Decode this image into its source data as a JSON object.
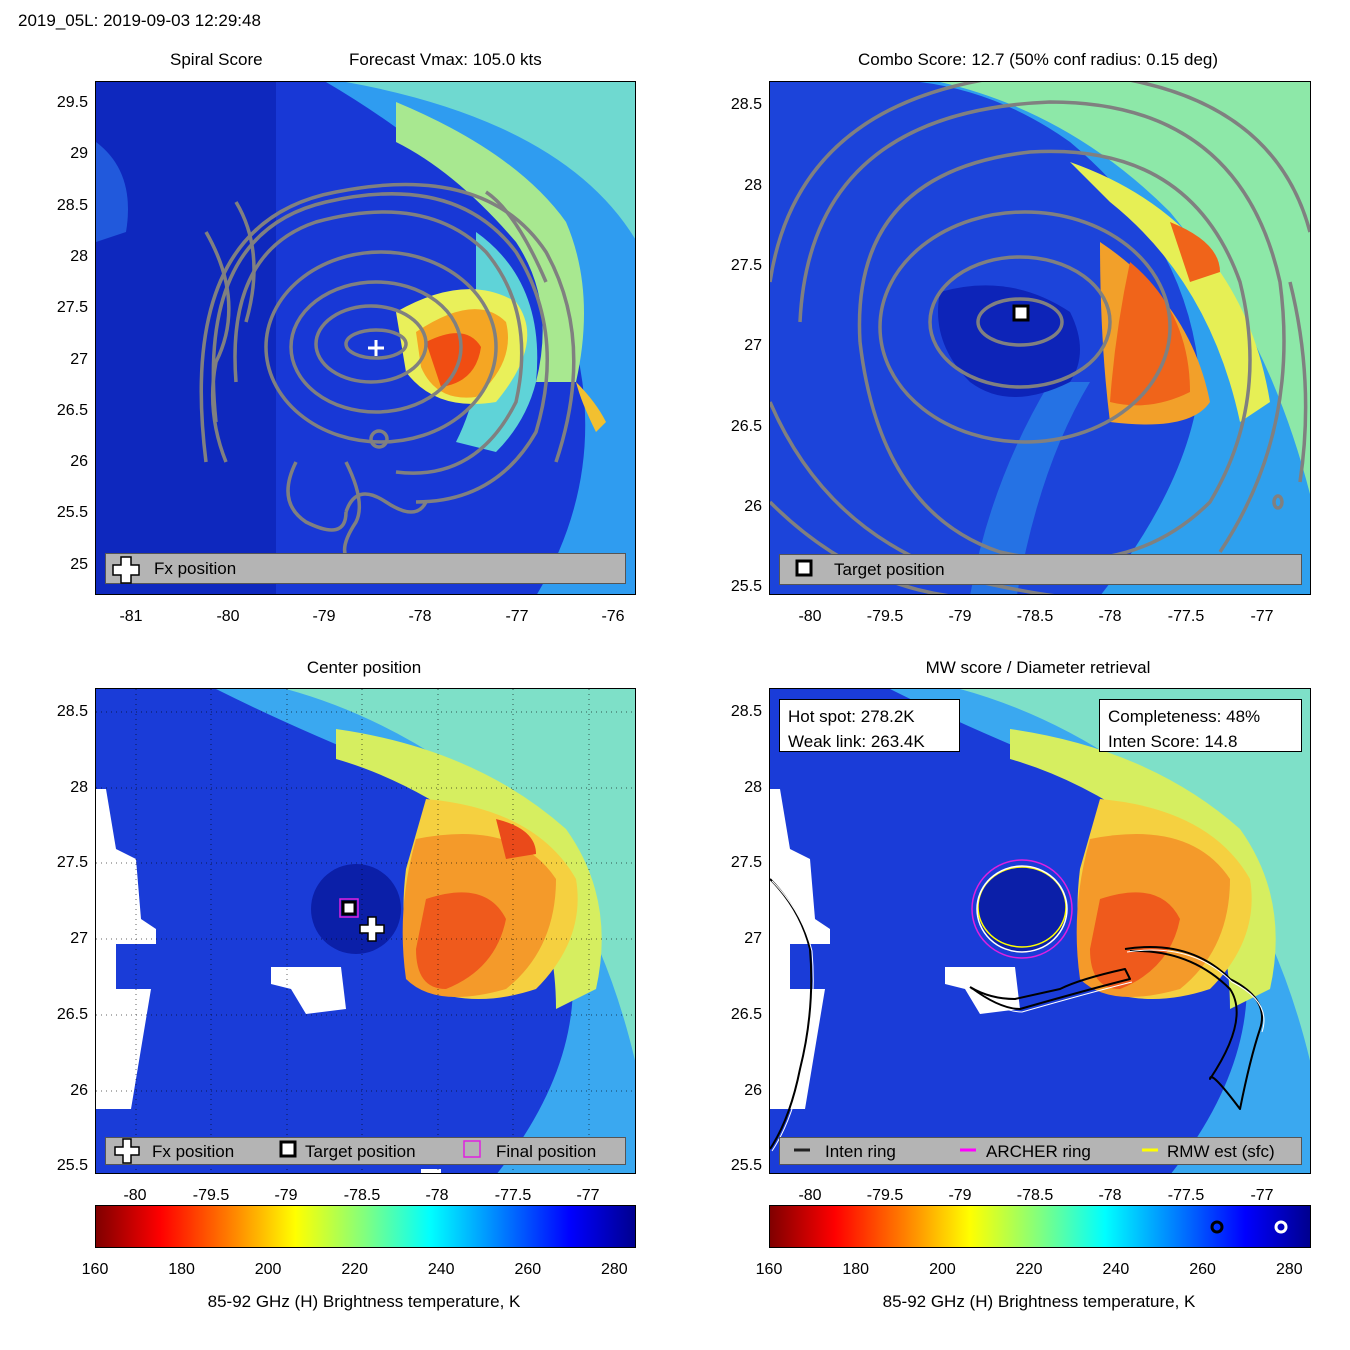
{
  "header": "2019_05L: 2019-09-03 12:29:48",
  "panel1": {
    "title_left": "Spiral Score",
    "title_right": "Forecast Vmax: 105.0 kts",
    "yticks": [
      "29.5",
      "29",
      "28.5",
      "28",
      "27.5",
      "27",
      "26.5",
      "26",
      "25.5",
      "25"
    ],
    "xticks": [
      "-81",
      "-80",
      "-79",
      "-78",
      "-77",
      "-76"
    ],
    "legend": "Fx position"
  },
  "panel2": {
    "title": "Combo Score: 12.7  (50% conf radius: 0.15 deg)",
    "yticks": [
      "28.5",
      "28",
      "27.5",
      "27",
      "26.5",
      "26",
      "25.5"
    ],
    "xticks": [
      "-80",
      "-79.5",
      "-79",
      "-78.5",
      "-78",
      "-77.5",
      "-77"
    ],
    "legend": "Target position"
  },
  "panel3": {
    "title": "Center position",
    "yticks": [
      "28.5",
      "28",
      "27.5",
      "27",
      "26.5",
      "26",
      "25.5"
    ],
    "xticks": [
      "-80",
      "-79.5",
      "-79",
      "-78.5",
      "-78",
      "-77.5",
      "-77"
    ],
    "legend": [
      "Fx position",
      "Target position",
      "Final position"
    ]
  },
  "panel4": {
    "title": "MW score / Diameter retrieval",
    "yticks": [
      "28.5",
      "28",
      "27.5",
      "27",
      "26.5",
      "26",
      "25.5"
    ],
    "xticks": [
      "-80",
      "-79.5",
      "-79",
      "-78.5",
      "-78",
      "-77.5",
      "-77"
    ],
    "hot_spot": "Hot spot: 278.2K",
    "weak_link": "Weak link: 263.4K",
    "completeness": "Completeness: 48%",
    "inten_score": "Inten Score: 14.8",
    "legend": [
      "Inten ring",
      "ARCHER ring",
      "RMW est (sfc)"
    ]
  },
  "colorbar": {
    "ticks": [
      "160",
      "180",
      "200",
      "220",
      "240",
      "260",
      "280"
    ],
    "label": "85-92 GHz (H) Brightness temperature, K",
    "range": [
      160,
      285
    ]
  },
  "colors": {
    "legend_bg": "#b4b4b4",
    "contour": "#808080",
    "archer": "#ff00ff",
    "rmw": "#ffff00"
  },
  "chart_data": [
    {
      "type": "heatmap",
      "title": "Spiral Score",
      "subtitle": "Forecast Vmax: 105.0 kts",
      "xlim": [
        -81.3,
        -75.7
      ],
      "ylim": [
        24.7,
        29.7
      ],
      "fx_position": {
        "lon": -78.5,
        "lat": 27.05
      },
      "legend": [
        "Fx position"
      ]
    },
    {
      "type": "heatmap",
      "title": "Combo Score: 12.7  (50% conf radius: 0.15 deg)",
      "xlim": [
        -80.25,
        -76.7
      ],
      "ylim": [
        25.45,
        28.65
      ],
      "target_position": {
        "lon": -78.6,
        "lat": 27.2
      },
      "legend": [
        "Target position"
      ]
    },
    {
      "type": "heatmap",
      "title": "Center position",
      "xlim": [
        -80.25,
        -76.7
      ],
      "ylim": [
        25.45,
        28.65
      ],
      "fx_position": {
        "lon": -78.5,
        "lat": 27.05
      },
      "target_position": {
        "lon": -78.6,
        "lat": 27.2
      },
      "final_position": {
        "lon": -78.6,
        "lat": 27.2
      },
      "legend": [
        "Fx position",
        "Target position",
        "Final position"
      ]
    },
    {
      "type": "heatmap",
      "title": "MW score / Diameter retrieval",
      "xlim": [
        -80.25,
        -76.7
      ],
      "ylim": [
        25.45,
        28.65
      ],
      "hot_spot_K": 278.2,
      "weak_link_K": 263.4,
      "completeness_pct": 48,
      "inten_score": 14.8,
      "eye_center": {
        "lon": -78.6,
        "lat": 27.2
      },
      "legend": [
        "Inten ring",
        "ARCHER ring",
        "RMW est (sfc)"
      ]
    }
  ]
}
